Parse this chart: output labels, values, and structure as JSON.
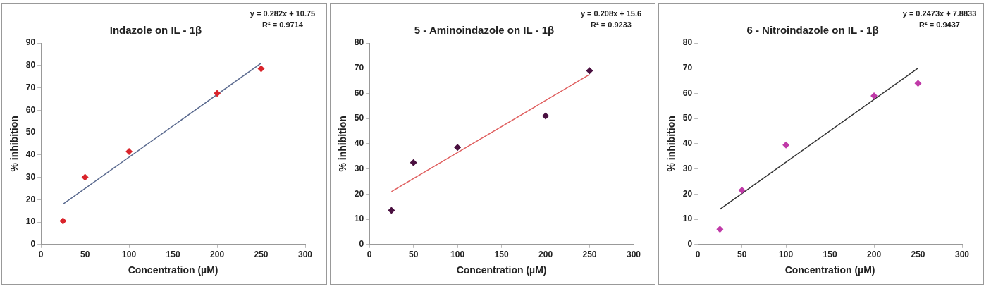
{
  "chart_data": [
    {
      "type": "scatter",
      "title": "Indazole on IL - 1β",
      "xlabel": "Concentration (µM)",
      "ylabel": "% inhibition",
      "xlim": [
        0,
        300
      ],
      "xticks": [
        0,
        50,
        100,
        150,
        200,
        250,
        300
      ],
      "ylim": [
        0,
        90
      ],
      "yticks": [
        0,
        10,
        20,
        30,
        40,
        50,
        60,
        70,
        80,
        90
      ],
      "marker": "diamond",
      "grid": false,
      "legend": false,
      "series": [
        {
          "color": "#d9242b",
          "x": [
            25,
            50,
            100,
            200,
            250
          ],
          "values": [
            10.5,
            30,
            41.5,
            67.5,
            78.5
          ]
        },
        {
          "type": "line",
          "marker": "none",
          "color": "#5a6a8f",
          "x": [
            25,
            250
          ],
          "values": [
            18,
            81
          ]
        }
      ],
      "annotations": [
        "y = 0.282x + 10.75",
        "R² = 0.9714"
      ]
    },
    {
      "type": "scatter",
      "title": "5 - Aminoindazole on IL - 1β",
      "xlabel": "Concentration (µM)",
      "ylabel": "% inhibition",
      "xlim": [
        0,
        300
      ],
      "xticks": [
        0,
        50,
        100,
        150,
        200,
        250,
        300
      ],
      "ylim": [
        0,
        80
      ],
      "yticks": [
        0,
        10,
        20,
        30,
        40,
        50,
        60,
        70,
        80
      ],
      "marker": "diamond",
      "grid": false,
      "legend": false,
      "series": [
        {
          "color": "#4a1040",
          "x": [
            25,
            50,
            100,
            200,
            250
          ],
          "values": [
            13.5,
            32.5,
            38.5,
            51,
            69
          ]
        },
        {
          "type": "line",
          "marker": "none",
          "color": "#e06060",
          "x": [
            25,
            250
          ],
          "values": [
            21,
            67.5
          ]
        }
      ],
      "annotations": [
        "y = 0.208x + 15.6",
        "R² = 0.9233"
      ]
    },
    {
      "type": "scatter",
      "title": "6 - Nitroindazole on IL - 1β",
      "xlabel": "Concentration (µM)",
      "ylabel": "% inhibition",
      "xlim": [
        0,
        300
      ],
      "xticks": [
        0,
        50,
        100,
        150,
        200,
        250,
        300
      ],
      "ylim": [
        0,
        80
      ],
      "yticks": [
        0,
        10,
        20,
        30,
        40,
        50,
        60,
        70,
        80
      ],
      "marker": "diamond",
      "grid": false,
      "legend": false,
      "series": [
        {
          "color": "#c03aa8",
          "x": [
            25,
            50,
            100,
            200,
            250
          ],
          "values": [
            6,
            21.5,
            39.5,
            59,
            64
          ]
        },
        {
          "type": "line",
          "marker": "none",
          "color": "#333333",
          "x": [
            25,
            250
          ],
          "values": [
            14,
            70
          ]
        }
      ],
      "annotations": [
        "y = 0.2473x + 7.8833",
        "R² = 0.9437"
      ]
    }
  ]
}
